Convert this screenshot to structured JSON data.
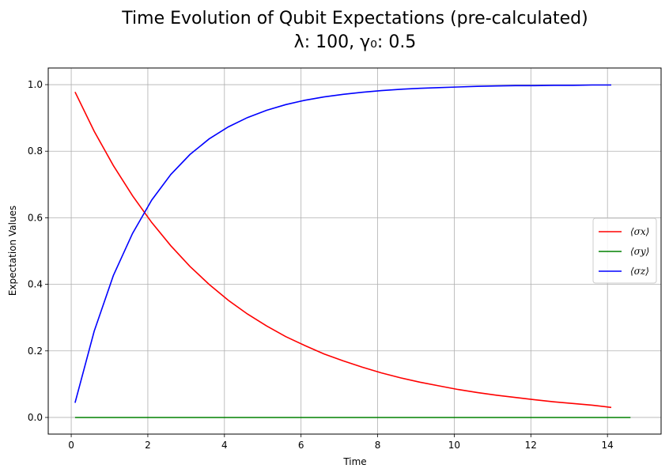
{
  "chart_data": {
    "type": "line",
    "title_line1": "Time Evolution of Qubit Expectations (pre-calculated)",
    "title_line2": "λ: 100, γ₀: 0.5",
    "xlabel": "Time",
    "ylabel": "Expectation Values",
    "xlim": [
      -0.6,
      15.4
    ],
    "ylim": [
      -0.05,
      1.05
    ],
    "xticks": [
      0,
      2,
      4,
      6,
      8,
      10,
      12,
      14
    ],
    "yticks": [
      0.0,
      0.2,
      0.4,
      0.6,
      0.8,
      1.0
    ],
    "xtick_labels": [
      "0",
      "2",
      "4",
      "6",
      "8",
      "10",
      "12",
      "14"
    ],
    "ytick_labels": [
      "0.0",
      "0.2",
      "0.4",
      "0.6",
      "0.8",
      "1.0"
    ],
    "grid": true,
    "legend_position": "center-right",
    "series": [
      {
        "name": "⟨σx⟩",
        "color": "#ff0000",
        "x": [
          0.1,
          0.6,
          1.1,
          1.6,
          2.1,
          2.6,
          3.1,
          3.6,
          4.1,
          4.6,
          5.1,
          5.6,
          6.1,
          6.6,
          7.1,
          7.6,
          8.1,
          8.6,
          9.1,
          9.6,
          10.1,
          10.6,
          11.1,
          11.6,
          12.1,
          12.6,
          13.1,
          13.6,
          14.1
        ],
        "values": [
          0.978,
          0.86,
          0.757,
          0.666,
          0.586,
          0.516,
          0.454,
          0.4,
          0.352,
          0.311,
          0.275,
          0.243,
          0.216,
          0.191,
          0.17,
          0.151,
          0.134,
          0.119,
          0.106,
          0.095,
          0.084,
          0.075,
          0.067,
          0.06,
          0.053,
          0.047,
          0.042,
          0.037,
          0.03
        ]
      },
      {
        "name": "⟨σy⟩",
        "color": "#008000",
        "x": [
          0.1,
          14.6
        ],
        "values": [
          0.0,
          0.0
        ]
      },
      {
        "name": "⟨σz⟩",
        "color": "#0000ff",
        "x": [
          0.1,
          0.6,
          1.1,
          1.6,
          2.1,
          2.6,
          3.1,
          3.6,
          4.1,
          4.6,
          5.1,
          5.6,
          6.1,
          6.6,
          7.1,
          7.6,
          8.1,
          8.6,
          9.1,
          9.6,
          10.1,
          10.6,
          11.1,
          11.6,
          12.1,
          12.6,
          13.1,
          13.6,
          14.1
        ],
        "values": [
          0.044,
          0.259,
          0.426,
          0.553,
          0.653,
          0.73,
          0.79,
          0.837,
          0.873,
          0.901,
          0.923,
          0.94,
          0.953,
          0.963,
          0.971,
          0.977,
          0.982,
          0.986,
          0.989,
          0.991,
          0.993,
          0.995,
          0.996,
          0.997,
          0.997,
          0.998,
          0.998,
          0.999,
          0.999
        ]
      }
    ]
  }
}
